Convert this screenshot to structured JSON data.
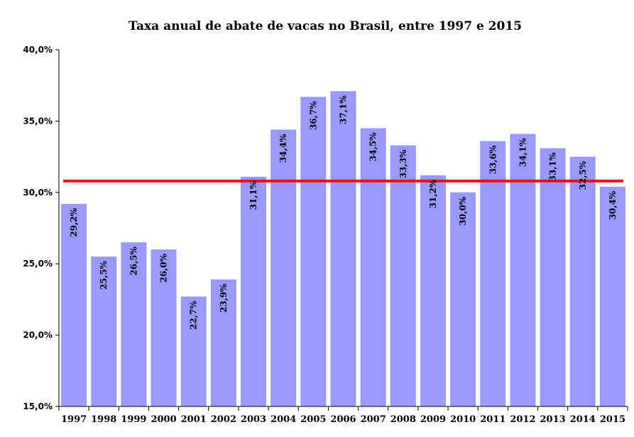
{
  "chart_data": {
    "type": "bar",
    "title": "Taxa anual de abate de vacas no Brasil, entre 1997 e 2015",
    "categories": [
      "1997",
      "1998",
      "1999",
      "2000",
      "2001",
      "2002",
      "2003",
      "2004",
      "2005",
      "2006",
      "2007",
      "2008",
      "2009",
      "2010",
      "2011",
      "2012",
      "2013",
      "2014",
      "2015"
    ],
    "values": [
      29.2,
      25.5,
      26.5,
      26.0,
      22.7,
      23.9,
      31.1,
      34.4,
      36.7,
      37.1,
      34.5,
      33.3,
      31.2,
      30.0,
      33.6,
      34.1,
      33.1,
      32.5,
      30.4
    ],
    "data_labels": [
      "29,2%",
      "25,5%",
      "26,5%",
      "26,0%",
      "22,7%",
      "23,9%",
      "31,1%",
      "34,4%",
      "36,7%",
      "37,1%",
      "34,5%",
      "33,3%",
      "31,2%",
      "30,0%",
      "33,6%",
      "34,1%",
      "33,1%",
      "32,5%",
      "30,4%"
    ],
    "ylim": [
      15.0,
      40.0
    ],
    "yticks": [
      15.0,
      20.0,
      25.0,
      30.0,
      35.0,
      40.0
    ],
    "ytick_labels": [
      "15,0%",
      "20,0%",
      "25,0%",
      "30,0%",
      "35,0%",
      "40,0%"
    ],
    "average_line": 30.8,
    "grid": false,
    "legend": "none",
    "colors": {
      "bar": "#9999ff",
      "average_line": "#e0141e",
      "axis": "#000000"
    }
  }
}
